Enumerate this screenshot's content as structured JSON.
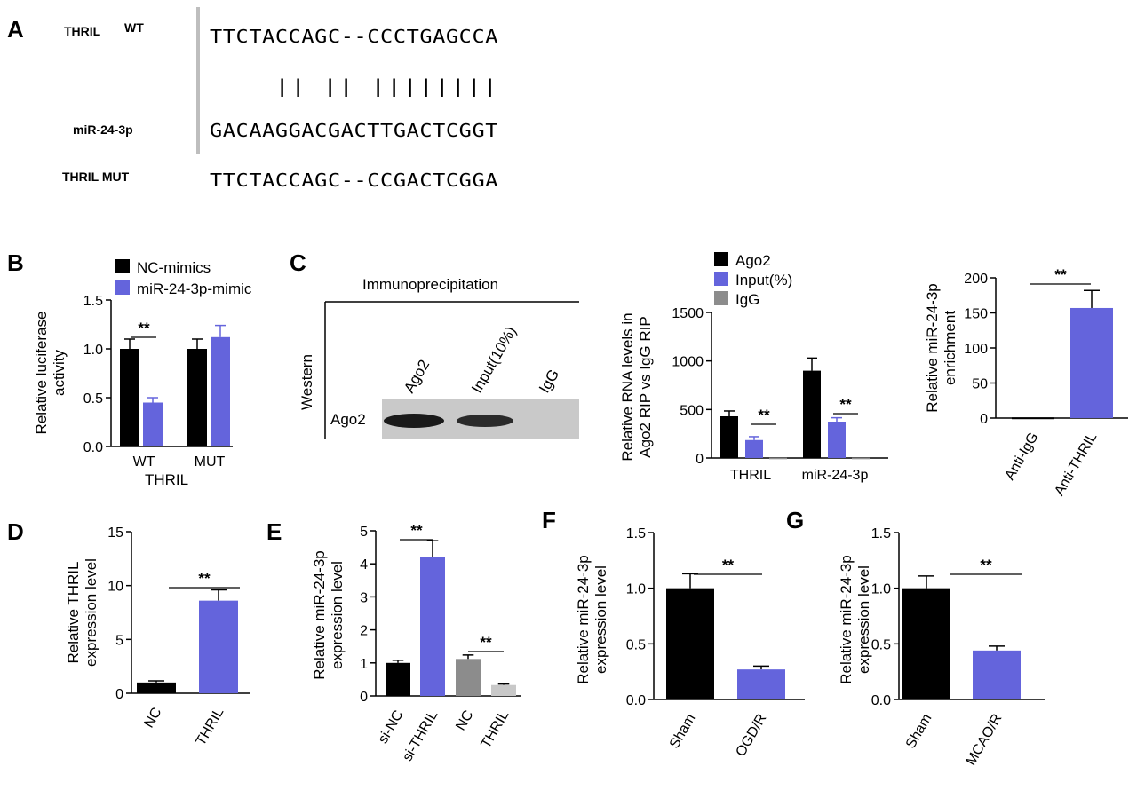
{
  "colors": {
    "black": "#000000",
    "blue": "#6464DC",
    "gray": "#8C8C8C",
    "lightgray": "#C8C8C8",
    "sep": "#BEBEBE"
  },
  "panels": {
    "A": "A",
    "B": "B",
    "C": "C",
    "D": "D",
    "E": "E",
    "F": "F",
    "G": "G"
  },
  "alignment": {
    "label_thril": "THRIL",
    "label_wt": "WT",
    "label_mir": "miR-24-3p",
    "label_mut": "THRIL MUT",
    "seq_wt": "TTCTACCAGC--CCCTGAGCCA",
    "match_bars": "|| ||   ||||||||",
    "seq_mir": "GACAAGGACGACTTGACTCGGT",
    "seq_mut": "TTCTACCAGC--CCGACTCGGA"
  },
  "western": {
    "title": "Immunoprecipitation",
    "side_label": "Western",
    "row_label": "Ago2",
    "lanes": [
      "Ago2",
      "Input(10%)",
      "IgG"
    ]
  },
  "chart_data": [
    {
      "id": "B",
      "type": "bar",
      "ylabel": "Relative luciferase activity",
      "ylabel_lines": [
        "Relative luciferase",
        "activity"
      ],
      "xlabel": "THRIL",
      "categories": [
        "WT",
        "MUT"
      ],
      "series": [
        {
          "name": "NC-mimics",
          "values": [
            1.0,
            1.0
          ],
          "errors": [
            0.1,
            0.1
          ]
        },
        {
          "name": "miR-24-3p-mimic",
          "values": [
            0.45,
            1.12
          ],
          "errors": [
            0.05,
            0.12
          ]
        }
      ],
      "ylim": [
        0,
        1.5
      ],
      "yticks": [
        "0.0",
        "0.5",
        "1.0",
        "1.5"
      ],
      "significance": [
        {
          "label": "**",
          "category": "WT"
        }
      ]
    },
    {
      "id": "C2",
      "type": "bar",
      "ylabel": "Relative RNA levels in Ago2 RIP vs IgG RIP",
      "ylabel_lines": [
        "Relative RNA levels in",
        "Ago2 RIP vs IgG RIP"
      ],
      "categories": [
        "THRIL",
        "miR-24-3p"
      ],
      "series": [
        {
          "name": "Ago2",
          "values": [
            430,
            900
          ],
          "errors": [
            55,
            130
          ]
        },
        {
          "name": "Input(%)",
          "values": [
            185,
            375
          ],
          "errors": [
            35,
            40
          ]
        },
        {
          "name": "IgG",
          "values": [
            2,
            2
          ],
          "errors": [
            0,
            0
          ]
        }
      ],
      "ylim": [
        0,
        1500
      ],
      "yticks": [
        "0",
        "500",
        "1000",
        "1500"
      ],
      "significance": [
        {
          "label": "**",
          "category": "THRIL"
        },
        {
          "label": "**",
          "category": "miR-24-3p"
        }
      ]
    },
    {
      "id": "C3",
      "type": "bar",
      "ylabel": "Relative miR-24-3p enrichment",
      "ylabel_lines": [
        "Relative miR-24-3p",
        "enrichment"
      ],
      "categories": [
        "Anti-IgG",
        "Anti-THRIL"
      ],
      "values": [
        1,
        157
      ],
      "errors": [
        0,
        25
      ],
      "ylim": [
        0,
        200
      ],
      "yticks": [
        "0",
        "50",
        "100",
        "150",
        "200"
      ],
      "significance": [
        {
          "label": "**"
        }
      ]
    },
    {
      "id": "D",
      "type": "bar",
      "ylabel": "Relative THRIL expression level",
      "ylabel_lines": [
        "Relative THRIL",
        "expression level"
      ],
      "categories": [
        "NC",
        "THRIL"
      ],
      "values": [
        1.0,
        8.6
      ],
      "errors": [
        0.15,
        1.0
      ],
      "ylim": [
        0,
        15
      ],
      "yticks": [
        "0",
        "5",
        "10",
        "15"
      ],
      "significance": [
        {
          "label": "**"
        }
      ]
    },
    {
      "id": "E",
      "type": "bar",
      "ylabel": "Relative miR-24-3p expression level",
      "ylabel_lines": [
        "Relative miR-24-3p",
        "expression level"
      ],
      "categories": [
        "si-NC",
        "si-THRIL",
        "NC",
        "THRIL"
      ],
      "values": [
        1.0,
        4.2,
        1.12,
        0.33
      ],
      "errors": [
        0.08,
        0.5,
        0.12,
        0.03
      ],
      "ylim": [
        0,
        5
      ],
      "yticks": [
        "0",
        "1",
        "2",
        "3",
        "4",
        "5"
      ],
      "significance": [
        {
          "label": "**",
          "pair": [
            "si-NC",
            "si-THRIL"
          ]
        },
        {
          "label": "**",
          "pair": [
            "NC",
            "THRIL"
          ]
        }
      ]
    },
    {
      "id": "F",
      "type": "bar",
      "ylabel": "Relative miR-24-3p expression level",
      "ylabel_lines": [
        "Relative miR-24-3p",
        "expression level"
      ],
      "categories": [
        "Sham",
        "OGD/R"
      ],
      "values": [
        1.0,
        0.27
      ],
      "errors": [
        0.13,
        0.03
      ],
      "ylim": [
        0,
        1.5
      ],
      "yticks": [
        "0.0",
        "0.5",
        "1.0",
        "1.5"
      ],
      "significance": [
        {
          "label": "**"
        }
      ]
    },
    {
      "id": "G",
      "type": "bar",
      "ylabel": "Relative miR-24-3p expression level",
      "ylabel_lines": [
        "Relative miR-24-3p",
        "expression level"
      ],
      "categories": [
        "Sham",
        "MCAO/R"
      ],
      "values": [
        1.0,
        0.44
      ],
      "errors": [
        0.11,
        0.04
      ],
      "ylim": [
        0,
        1.5
      ],
      "yticks": [
        "0.0",
        "0.5",
        "1.0",
        "1.5"
      ],
      "significance": [
        {
          "label": "**"
        }
      ]
    }
  ]
}
